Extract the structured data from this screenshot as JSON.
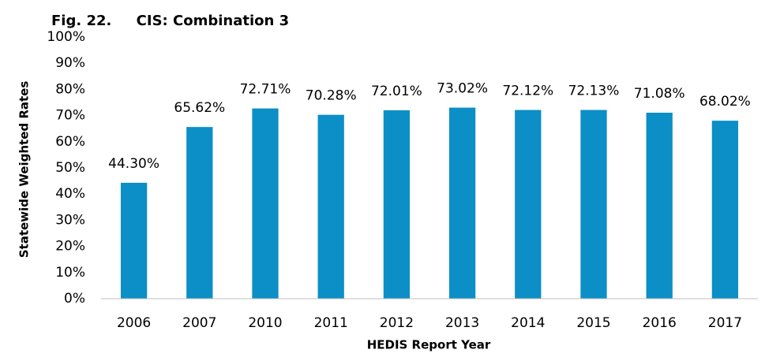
{
  "chart_data": {
    "type": "bar",
    "title": "Fig. 22.     CIS: Combination 3",
    "x_label": "HEDIS Report Year",
    "y_label": "Statewide Weighted Rates",
    "categories": [
      "2006",
      "2007",
      "2010",
      "2011",
      "2012",
      "2013",
      "2014",
      "2015",
      "2016",
      "2017"
    ],
    "values": [
      44.3,
      65.62,
      72.71,
      70.28,
      72.01,
      73.02,
      72.12,
      72.13,
      71.08,
      68.02
    ],
    "value_labels": [
      "44.30%",
      "65.62%",
      "72.71%",
      "70.28%",
      "72.01%",
      "73.02%",
      "72.12%",
      "72.13%",
      "71.08%",
      "68.02%"
    ],
    "color": "#0b8fc6",
    "ylim": [
      0,
      100
    ],
    "yticks": [
      {
        "value": 0,
        "label": "0%"
      },
      {
        "value": 10,
        "label": "10%"
      },
      {
        "value": 20,
        "label": "20%"
      },
      {
        "value": 30,
        "label": "30%"
      },
      {
        "value": 40,
        "label": "40%"
      },
      {
        "value": 50,
        "label": "50%"
      },
      {
        "value": 60,
        "label": "60%"
      },
      {
        "value": 70,
        "label": "70%"
      },
      {
        "value": 80,
        "label": "80%"
      },
      {
        "value": 90,
        "label": "90%"
      },
      {
        "value": 100,
        "label": "100%"
      }
    ],
    "grid": false
  }
}
